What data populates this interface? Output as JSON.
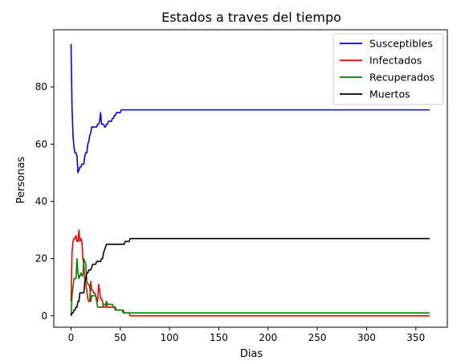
{
  "chart_data": {
    "type": "line",
    "title": "Estados a traves del tiempo",
    "xlabel": "Dias",
    "ylabel": "Personas",
    "xlim": [
      -17.5,
      382
    ],
    "ylim": [
      -4,
      100
    ],
    "xticks": [
      0,
      50,
      100,
      150,
      200,
      250,
      300,
      350
    ],
    "yticks": [
      0,
      20,
      40,
      60,
      80
    ],
    "grid": false,
    "legend_position": "top-right",
    "series": [
      {
        "name": "Susceptibles",
        "color": "#0000ff",
        "points": [
          [
            0,
            95
          ],
          [
            1,
            73
          ],
          [
            2,
            63
          ],
          [
            3,
            59
          ],
          [
            4,
            57
          ],
          [
            5,
            57
          ],
          [
            6,
            56
          ],
          [
            7,
            50
          ],
          [
            8,
            51
          ],
          [
            9,
            52
          ],
          [
            10,
            52
          ],
          [
            11,
            53
          ],
          [
            12,
            53
          ],
          [
            13,
            53
          ],
          [
            14,
            56
          ],
          [
            15,
            57
          ],
          [
            16,
            57
          ],
          [
            17,
            60
          ],
          [
            18,
            61
          ],
          [
            19,
            63
          ],
          [
            20,
            64
          ],
          [
            21,
            66
          ],
          [
            22,
            66
          ],
          [
            23,
            66
          ],
          [
            24,
            66
          ],
          [
            25,
            66
          ],
          [
            26,
            66
          ],
          [
            27,
            67
          ],
          [
            28,
            67
          ],
          [
            29,
            68
          ],
          [
            30,
            71
          ],
          [
            31,
            67
          ],
          [
            32,
            67
          ],
          [
            33,
            67
          ],
          [
            34,
            66
          ],
          [
            35,
            66
          ],
          [
            36,
            67
          ],
          [
            37,
            67
          ],
          [
            38,
            68
          ],
          [
            39,
            68
          ],
          [
            40,
            68
          ],
          [
            41,
            68
          ],
          [
            42,
            69
          ],
          [
            43,
            69
          ],
          [
            44,
            70
          ],
          [
            45,
            70
          ],
          [
            46,
            71
          ],
          [
            47,
            71
          ],
          [
            48,
            71
          ],
          [
            49,
            71
          ],
          [
            50,
            71
          ],
          [
            51,
            72
          ],
          [
            52,
            72
          ],
          [
            53,
            72
          ],
          [
            54,
            72
          ],
          [
            56,
            72
          ],
          [
            100,
            72
          ],
          [
            200,
            72
          ],
          [
            300,
            72
          ],
          [
            364,
            72
          ]
        ]
      },
      {
        "name": "Infectados",
        "color": "#ff0000",
        "points": [
          [
            0,
            5
          ],
          [
            1,
            22
          ],
          [
            2,
            26
          ],
          [
            3,
            27
          ],
          [
            4,
            27
          ],
          [
            5,
            28
          ],
          [
            6,
            26
          ],
          [
            7,
            26
          ],
          [
            8,
            30
          ],
          [
            9,
            26
          ],
          [
            10,
            27
          ],
          [
            11,
            26
          ],
          [
            12,
            20
          ],
          [
            13,
            18
          ],
          [
            14,
            13
          ],
          [
            15,
            11
          ],
          [
            16,
            9
          ],
          [
            17,
            6
          ],
          [
            18,
            5
          ],
          [
            19,
            5
          ],
          [
            20,
            12
          ],
          [
            21,
            9
          ],
          [
            22,
            9
          ],
          [
            23,
            8
          ],
          [
            24,
            8
          ],
          [
            25,
            7
          ],
          [
            26,
            6
          ],
          [
            27,
            5
          ],
          [
            28,
            11
          ],
          [
            29,
            9
          ],
          [
            30,
            6
          ],
          [
            31,
            6
          ],
          [
            32,
            5
          ],
          [
            33,
            3
          ],
          [
            34,
            3
          ],
          [
            35,
            3
          ],
          [
            36,
            4
          ],
          [
            37,
            3
          ],
          [
            38,
            3
          ],
          [
            39,
            3
          ],
          [
            40,
            3
          ],
          [
            41,
            3
          ],
          [
            42,
            3
          ],
          [
            43,
            3
          ],
          [
            44,
            3
          ],
          [
            45,
            2
          ],
          [
            46,
            2
          ],
          [
            47,
            2
          ],
          [
            48,
            2
          ],
          [
            49,
            2
          ],
          [
            50,
            2
          ],
          [
            51,
            2
          ],
          [
            52,
            2
          ],
          [
            53,
            2
          ],
          [
            54,
            1
          ],
          [
            55,
            1
          ],
          [
            56,
            1
          ],
          [
            57,
            1
          ],
          [
            58,
            1
          ],
          [
            59,
            1
          ],
          [
            60,
            0
          ],
          [
            100,
            0
          ],
          [
            200,
            0
          ],
          [
            300,
            0
          ],
          [
            364,
            0
          ]
        ]
      },
      {
        "name": "Recuperados",
        "color": "#008000",
        "points": [
          [
            0,
            0
          ],
          [
            1,
            7
          ],
          [
            2,
            10
          ],
          [
            3,
            13
          ],
          [
            4,
            13
          ],
          [
            5,
            13
          ],
          [
            6,
            20
          ],
          [
            7,
            15
          ],
          [
            8,
            13
          ],
          [
            9,
            14
          ],
          [
            10,
            15
          ],
          [
            11,
            14
          ],
          [
            12,
            14
          ],
          [
            13,
            20
          ],
          [
            14,
            19
          ],
          [
            15,
            18
          ],
          [
            16,
            12
          ],
          [
            17,
            11
          ],
          [
            18,
            11
          ],
          [
            19,
            10
          ],
          [
            20,
            5
          ],
          [
            21,
            7
          ],
          [
            22,
            7
          ],
          [
            23,
            7
          ],
          [
            24,
            7
          ],
          [
            25,
            7
          ],
          [
            26,
            5
          ],
          [
            27,
            3
          ],
          [
            28,
            3
          ],
          [
            29,
            3
          ],
          [
            30,
            3
          ],
          [
            31,
            3
          ],
          [
            32,
            3
          ],
          [
            33,
            4
          ],
          [
            34,
            4
          ],
          [
            35,
            4
          ],
          [
            36,
            5
          ],
          [
            37,
            4
          ],
          [
            38,
            4
          ],
          [
            39,
            4
          ],
          [
            40,
            4
          ],
          [
            41,
            4
          ],
          [
            42,
            4
          ],
          [
            43,
            3
          ],
          [
            44,
            3
          ],
          [
            45,
            3
          ],
          [
            46,
            2
          ],
          [
            47,
            2
          ],
          [
            48,
            2
          ],
          [
            49,
            2
          ],
          [
            50,
            2
          ],
          [
            51,
            2
          ],
          [
            52,
            2
          ],
          [
            53,
            1
          ],
          [
            54,
            1
          ],
          [
            100,
            1
          ],
          [
            200,
            1
          ],
          [
            300,
            1
          ],
          [
            364,
            1
          ]
        ]
      },
      {
        "name": "Muertos",
        "color": "#000000",
        "points": [
          [
            0,
            0
          ],
          [
            1,
            1
          ],
          [
            2,
            1
          ],
          [
            3,
            2
          ],
          [
            4,
            2
          ],
          [
            5,
            3
          ],
          [
            6,
            3
          ],
          [
            7,
            5
          ],
          [
            8,
            5
          ],
          [
            9,
            8
          ],
          [
            10,
            8
          ],
          [
            11,
            8
          ],
          [
            12,
            8
          ],
          [
            13,
            8
          ],
          [
            14,
            12
          ],
          [
            15,
            13
          ],
          [
            16,
            15
          ],
          [
            17,
            15
          ],
          [
            18,
            16
          ],
          [
            19,
            16
          ],
          [
            20,
            16
          ],
          [
            21,
            17
          ],
          [
            22,
            18
          ],
          [
            23,
            18
          ],
          [
            24,
            18
          ],
          [
            25,
            18
          ],
          [
            26,
            19
          ],
          [
            27,
            19
          ],
          [
            28,
            19
          ],
          [
            29,
            19
          ],
          [
            30,
            19
          ],
          [
            31,
            20
          ],
          [
            32,
            20
          ],
          [
            33,
            22
          ],
          [
            34,
            23
          ],
          [
            35,
            24
          ],
          [
            36,
            25
          ],
          [
            37,
            25
          ],
          [
            38,
            25
          ],
          [
            45,
            25
          ],
          [
            46,
            25
          ],
          [
            47,
            25
          ],
          [
            48,
            25
          ],
          [
            49,
            25
          ],
          [
            50,
            25
          ],
          [
            51,
            25
          ],
          [
            52,
            25
          ],
          [
            53,
            25
          ],
          [
            54,
            25
          ],
          [
            55,
            26
          ],
          [
            56,
            26
          ],
          [
            57,
            26
          ],
          [
            58,
            26
          ],
          [
            59,
            26
          ],
          [
            60,
            27
          ],
          [
            100,
            27
          ],
          [
            200,
            27
          ],
          [
            300,
            27
          ],
          [
            364,
            27
          ]
        ]
      }
    ]
  }
}
